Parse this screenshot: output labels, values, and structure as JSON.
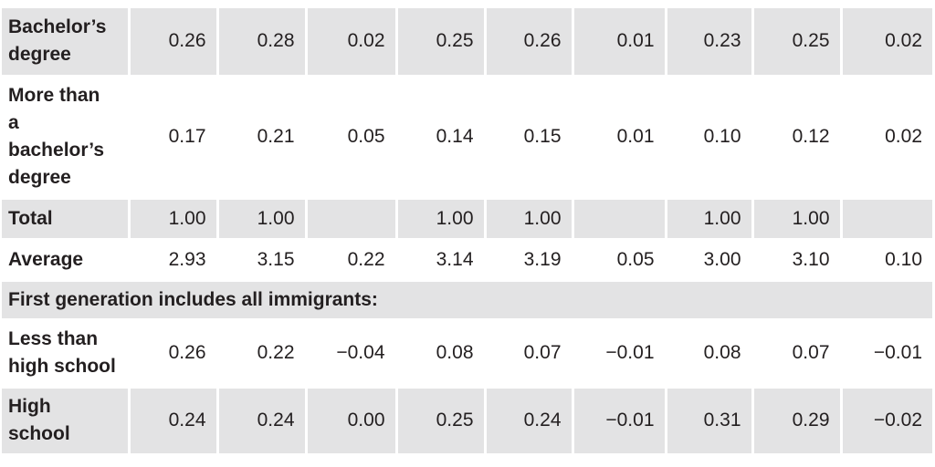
{
  "rows": [
    {
      "label": "Bachelor’s degree",
      "values": [
        "0.26",
        "0.28",
        "0.02",
        "0.25",
        "0.26",
        "0.01",
        "0.23",
        "0.25",
        "0.02"
      ]
    },
    {
      "label": "More than a bachelor’s degree",
      "values": [
        "0.17",
        "0.21",
        "0.05",
        "0.14",
        "0.15",
        "0.01",
        "0.10",
        "0.12",
        "0.02"
      ]
    },
    {
      "label": "Total",
      "values": [
        "1.00",
        "1.00",
        "",
        "1.00",
        "1.00",
        "",
        "1.00",
        "1.00",
        ""
      ]
    },
    {
      "label": "Average",
      "values": [
        "2.93",
        "3.15",
        "0.22",
        "3.14",
        "3.19",
        "0.05",
        "3.00",
        "3.10",
        "0.10"
      ]
    }
  ],
  "section_heading": "First generation includes all immigrants:",
  "section_rows": [
    {
      "label": "Less than high school",
      "values": [
        "0.26",
        "0.22",
        "−0.04",
        "0.08",
        "0.07",
        "−0.01",
        "0.08",
        "0.07",
        "−0.01"
      ]
    },
    {
      "label": "High school",
      "values": [
        "0.24",
        "0.24",
        "0.00",
        "0.25",
        "0.24",
        "−0.01",
        "0.31",
        "0.29",
        "−0.02"
      ]
    }
  ]
}
